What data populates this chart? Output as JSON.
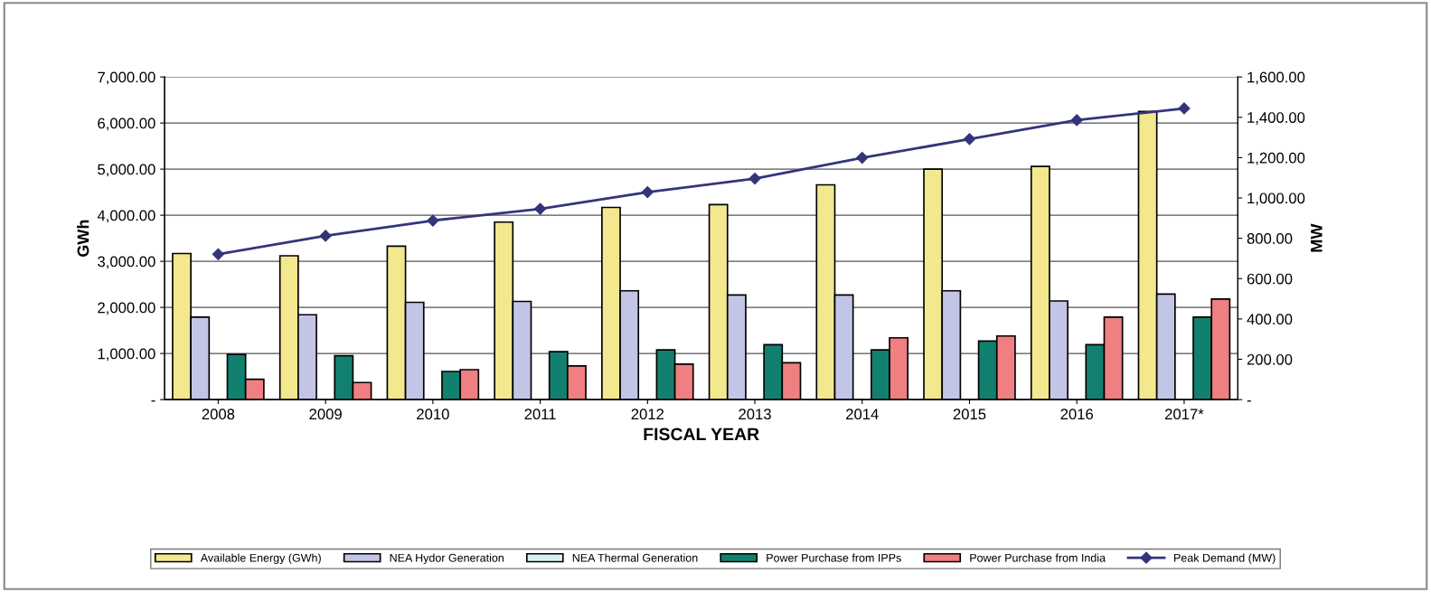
{
  "chart_data": {
    "type": "bar",
    "xlabel": "FISCAL YEAR",
    "ylabel": "GWh",
    "y2label": "MW",
    "categories": [
      "2008",
      "2009",
      "2010",
      "2011",
      "2012",
      "2013",
      "2014",
      "2015",
      "2016",
      "2017*"
    ],
    "series": [
      {
        "name": "Available Energy (GWh)",
        "color": "#f3e88e",
        "values": [
          3170,
          3120,
          3330,
          3850,
          4170,
          4230,
          4660,
          5000,
          5060,
          6250
        ]
      },
      {
        "name": "NEA Hydor Generation",
        "color": "#c2c5e6",
        "values": [
          1790,
          1840,
          2110,
          2130,
          2360,
          2270,
          2270,
          2360,
          2140,
          2290
        ]
      },
      {
        "name": "NEA Thermal Generation",
        "color": "#d6f2f2",
        "values": [
          null,
          null,
          null,
          null,
          null,
          null,
          null,
          null,
          null,
          null
        ]
      },
      {
        "name": "Power Purchase from IPPs",
        "color": "#12806f",
        "values": [
          980,
          950,
          610,
          1040,
          1080,
          1190,
          1080,
          1270,
          1190,
          1790
        ]
      },
      {
        "name": "Power Purchase from India",
        "color": "#ef7f80",
        "values": [
          440,
          370,
          650,
          730,
          770,
          800,
          1340,
          1380,
          1790,
          2180
        ]
      },
      {
        "name": "Peak Demand (MW)",
        "type": "line",
        "axis": "y2",
        "color": "#33357a",
        "marker": "diamond",
        "values": [
          721,
          812,
          888,
          946,
          1029,
          1096,
          1199,
          1292,
          1386,
          1444
        ]
      }
    ],
    "ylim": [
      0,
      7000
    ],
    "yticks": [
      {
        "value": 0,
        "label": "-"
      },
      {
        "value": 1000,
        "label": "1,000.00"
      },
      {
        "value": 2000,
        "label": "2,000.00"
      },
      {
        "value": 3000,
        "label": "3,000.00"
      },
      {
        "value": 4000,
        "label": "4,000.00"
      },
      {
        "value": 5000,
        "label": "5,000.00"
      },
      {
        "value": 6000,
        "label": "6,000.00"
      },
      {
        "value": 7000,
        "label": "7,000.00"
      }
    ],
    "y2lim": [
      0,
      1600
    ],
    "y2ticks": [
      {
        "value": 0,
        "label": "-"
      },
      {
        "value": 200,
        "label": "200.00"
      },
      {
        "value": 400,
        "label": "400.00"
      },
      {
        "value": 600,
        "label": "600.00"
      },
      {
        "value": 800,
        "label": "800.00"
      },
      {
        "value": 1000,
        "label": "1,000.00"
      },
      {
        "value": 1200,
        "label": "1,200.00"
      },
      {
        "value": 1400,
        "label": "1,400.00"
      },
      {
        "value": 1600,
        "label": "1,600.00"
      }
    ],
    "grid": "y",
    "legend": "bottom"
  }
}
